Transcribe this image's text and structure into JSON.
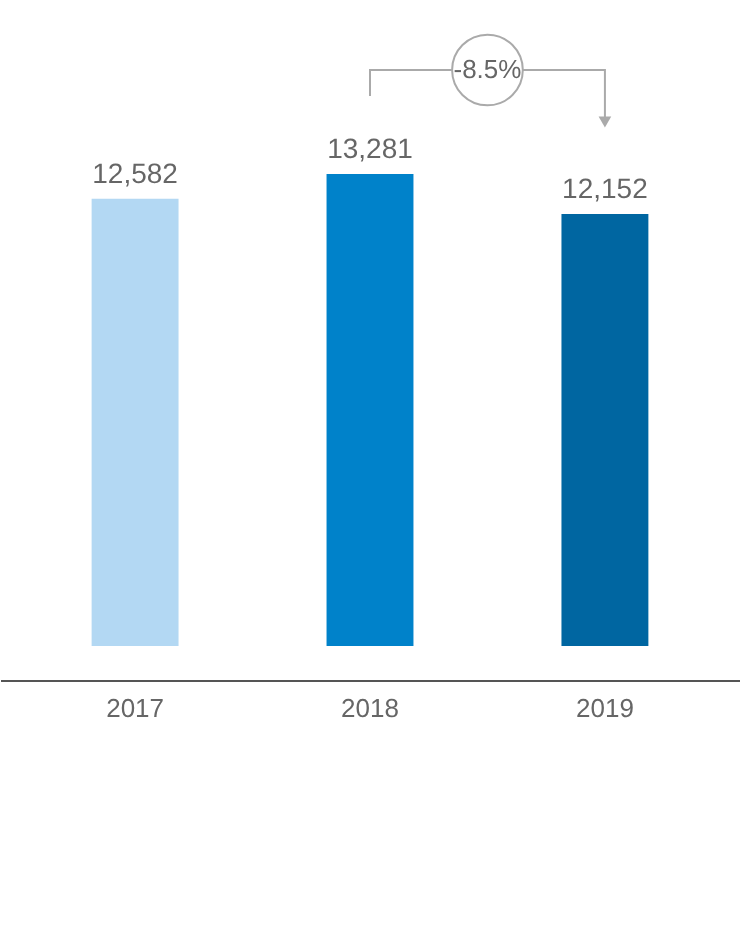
{
  "chart_data": {
    "type": "bar",
    "categories": [
      "2017",
      "2018",
      "2019"
    ],
    "values": [
      12582,
      13281,
      12152
    ],
    "value_labels": [
      "12,582",
      "13,281",
      "12,152"
    ],
    "colors": [
      "#b3d8f3",
      "#0082ca",
      "#0066a1"
    ],
    "tick_labels": "x",
    "grid": false,
    "annotations": [
      "-8.5%"
    ]
  }
}
